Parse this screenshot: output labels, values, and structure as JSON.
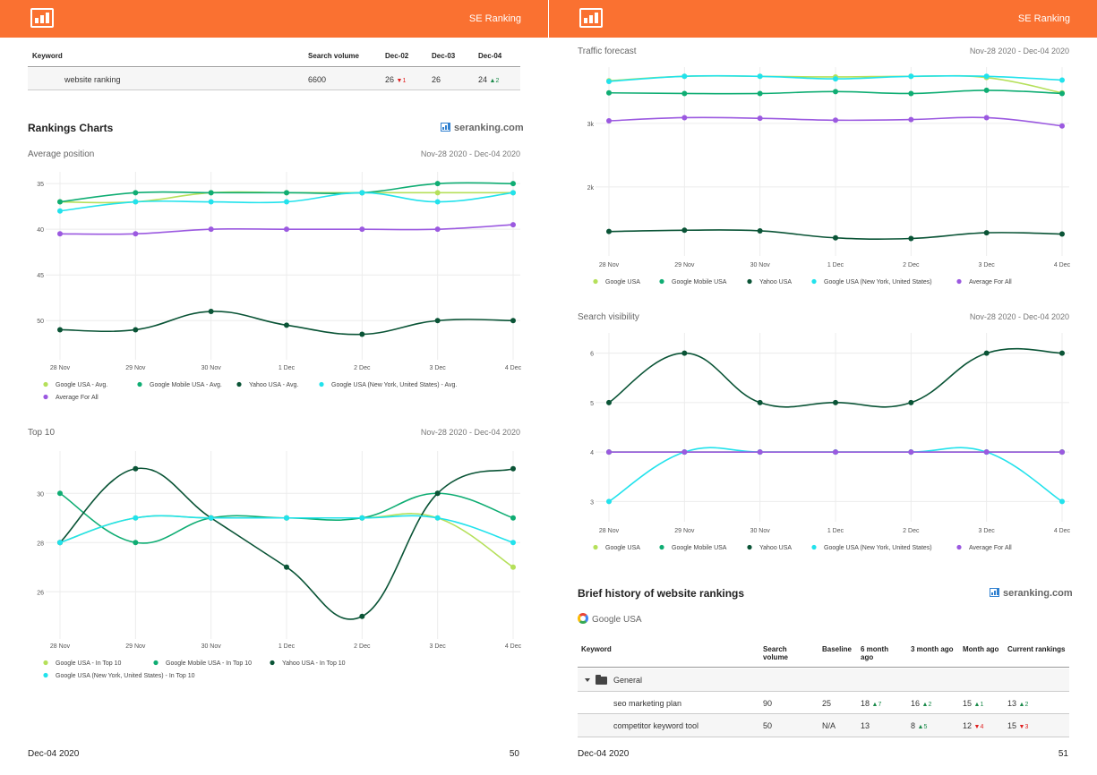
{
  "brand": "SE Ranking",
  "colors": {
    "header": "#fa7131",
    "google_usa": "#b5e05a",
    "google_mobile_usa": "#0fad73",
    "yahoo_usa": "#0a5436",
    "google_usa_ny": "#22e2ec",
    "average_for_all": "#9b59e0"
  },
  "left": {
    "keywords_table": {
      "headers": [
        "Keyword",
        "Search volume",
        "Dec-02",
        "Dec-03",
        "Dec-04"
      ],
      "row": {
        "keyword": "website ranking",
        "volume": "6600",
        "dec02": "26",
        "dec02_change": "1",
        "dec03": "26",
        "dec04": "24",
        "dec04_change": "2"
      }
    },
    "rankings_title": "Rankings Charts",
    "seranking_link": "seranking.com",
    "footer_date": "Dec-04 2020",
    "footer_page": "50"
  },
  "right": {
    "history_title": "Brief history of website rankings",
    "seranking_link": "seranking.com",
    "engine": "Google USA",
    "history_table": {
      "headers": [
        "Keyword",
        "Search volume",
        "Baseline",
        "6 month ago",
        "3 month ago",
        "Month ago",
        "Current rankings"
      ],
      "group": "General",
      "rows": [
        {
          "keyword": "seo marketing plan",
          "volume": "90",
          "baseline": "25",
          "m6": "18",
          "m6_change": "7",
          "m6_dir": "up",
          "m3": "16",
          "m3_change": "2",
          "m3_dir": "up",
          "m1": "15",
          "m1_change": "1",
          "m1_dir": "up",
          "current": "13",
          "current_change": "2",
          "current_dir": "up"
        },
        {
          "keyword": "competitor keyword tool",
          "volume": "50",
          "baseline": "N/A",
          "m6": "13",
          "m6_change": "",
          "m6_dir": "",
          "m3": "8",
          "m3_change": "5",
          "m3_dir": "up",
          "m1": "12",
          "m1_change": "4",
          "m1_dir": "down",
          "current": "15",
          "current_change": "3",
          "current_dir": "down"
        }
      ]
    },
    "footer_date": "Dec-04 2020",
    "footer_page": "51"
  },
  "chart_data": [
    {
      "id": "average-position",
      "type": "line",
      "title": "Average position",
      "date_range": "Nov-28 2020 - Dec-04 2020",
      "categories": [
        "28 Nov",
        "29 Nov",
        "30 Nov",
        "1 Dec",
        "2 Dec",
        "3 Dec",
        "4 Dec"
      ],
      "ylim": [
        53.7,
        34.3
      ],
      "y_reversed": true,
      "yticks": [
        35,
        40,
        45,
        50
      ],
      "series": [
        {
          "name": "Google USA - Avg.",
          "color": "#b5e05a",
          "values": [
            37,
            37,
            36,
            36,
            36,
            36,
            36
          ]
        },
        {
          "name": "Google Mobile USA - Avg.",
          "color": "#0fad73",
          "values": [
            37,
            36,
            36,
            36,
            36,
            35,
            35
          ]
        },
        {
          "name": "Yahoo USA - Avg.",
          "color": "#0a5436",
          "values": [
            51,
            51,
            49,
            50.5,
            51.5,
            50,
            50
          ]
        },
        {
          "name": "Google USA (New York, United States) - Avg.",
          "color": "#22e2ec",
          "values": [
            38,
            37,
            37,
            37,
            36,
            37,
            36
          ]
        },
        {
          "name": "Average For All",
          "color": "#9b59e0",
          "values": [
            40.5,
            40.5,
            40,
            40,
            40,
            40,
            39.5
          ]
        }
      ],
      "legend": "bottom"
    },
    {
      "id": "top-10",
      "type": "line",
      "title": "Top 10",
      "date_range": "Nov-28 2020 - Dec-04 2020",
      "categories": [
        "28 Nov",
        "29 Nov",
        "30 Nov",
        "1 Dec",
        "2 Dec",
        "3 Dec",
        "4 Dec"
      ],
      "ylim": [
        24.3,
        31.5
      ],
      "yticks": [
        26,
        28,
        30
      ],
      "series": [
        {
          "name": "Google USA - In Top 10",
          "color": "#b5e05a",
          "values": [
            28,
            29,
            29,
            29,
            29,
            29,
            27
          ]
        },
        {
          "name": "Google Mobile USA - In Top 10",
          "color": "#0fad73",
          "values": [
            30,
            28,
            29,
            29,
            29,
            30,
            29
          ]
        },
        {
          "name": "Yahoo USA - In Top 10",
          "color": "#0a5436",
          "values": [
            28,
            31,
            29,
            27,
            25,
            30,
            31
          ]
        },
        {
          "name": "Google USA (New York, United States) - In Top 10",
          "color": "#22e2ec",
          "values": [
            28,
            29,
            29,
            29,
            29,
            29,
            28
          ]
        }
      ],
      "legend": "bottom"
    },
    {
      "id": "traffic-forecast",
      "type": "line",
      "title": "Traffic forecast",
      "date_range": "Nov-28 2020 - Dec-04 2020",
      "categories": [
        "28 Nov",
        "29 Nov",
        "30 Nov",
        "1 Dec",
        "2 Dec",
        "3 Dec",
        "4 Dec"
      ],
      "ylim": [
        1000,
        3800
      ],
      "yticks": [
        2000,
        3000
      ],
      "ytick_labels": [
        "2k",
        "3k"
      ],
      "series": [
        {
          "name": "Google USA",
          "color": "#b5e05a",
          "values": [
            3670,
            3740,
            3740,
            3730,
            3740,
            3720,
            3480
          ]
        },
        {
          "name": "Google Mobile USA",
          "color": "#0fad73",
          "values": [
            3480,
            3470,
            3470,
            3500,
            3470,
            3520,
            3470
          ]
        },
        {
          "name": "Yahoo USA",
          "color": "#0a5436",
          "values": [
            1300,
            1320,
            1310,
            1200,
            1190,
            1280,
            1260
          ]
        },
        {
          "name": "Google USA (New York, United States)",
          "color": "#22e2ec",
          "values": [
            3660,
            3740,
            3740,
            3700,
            3740,
            3740,
            3680
          ]
        },
        {
          "name": "Average For All",
          "color": "#9b59e0",
          "values": [
            3040,
            3090,
            3080,
            3050,
            3060,
            3090,
            2960
          ]
        }
      ],
      "legend": "bottom"
    },
    {
      "id": "search-visibility",
      "type": "line",
      "title": "Search visibility",
      "date_range": "Nov-28 2020 - Dec-04 2020",
      "categories": [
        "28 Nov",
        "29 Nov",
        "30 Nov",
        "1 Dec",
        "2 Dec",
        "3 Dec",
        "4 Dec"
      ],
      "ylim": [
        2.7,
        6.3
      ],
      "yticks": [
        3,
        4,
        5,
        6
      ],
      "series": [
        {
          "name": "Google USA",
          "color": "#b5e05a",
          "values": [
            4,
            4,
            4,
            4,
            4,
            4,
            4
          ]
        },
        {
          "name": "Google Mobile USA",
          "color": "#0fad73",
          "values": [
            4,
            4,
            4,
            4,
            4,
            4,
            4
          ]
        },
        {
          "name": "Yahoo USA",
          "color": "#0a5436",
          "values": [
            5,
            6,
            5,
            5,
            5,
            6,
            6
          ]
        },
        {
          "name": "Google USA (New York, United States)",
          "color": "#22e2ec",
          "values": [
            3,
            4,
            4,
            4,
            4,
            4,
            3
          ]
        },
        {
          "name": "Average For All",
          "color": "#9b59e0",
          "values": [
            4,
            4,
            4,
            4,
            4,
            4,
            4
          ]
        }
      ],
      "legend": "bottom"
    }
  ]
}
